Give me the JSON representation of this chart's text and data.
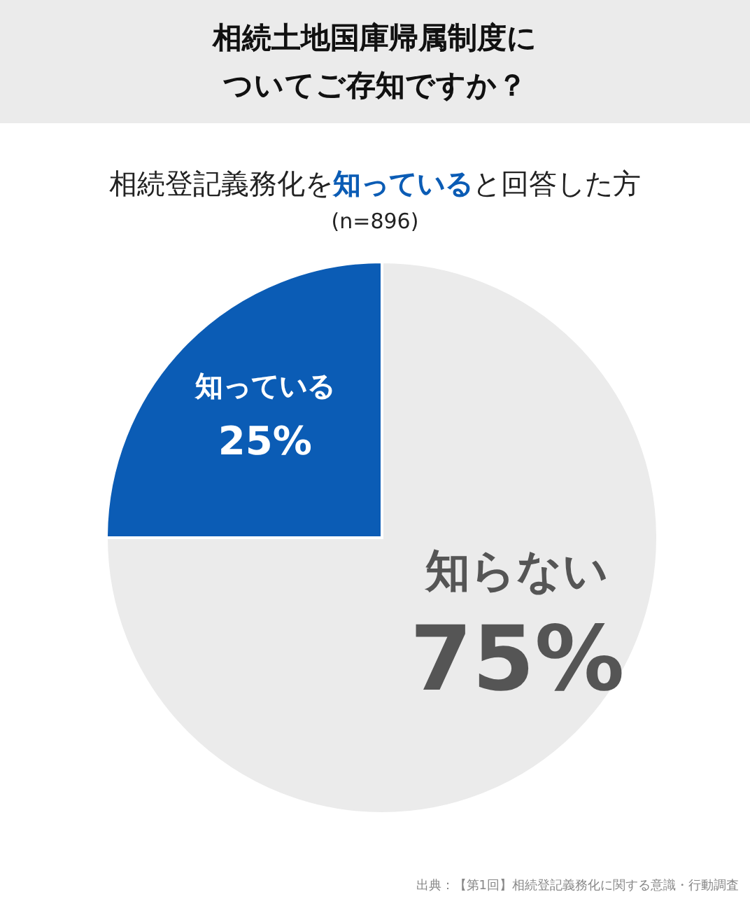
{
  "chart_data": {
    "type": "pie",
    "title": "相続土地国庫帰属制度についてご存知ですか？",
    "subtitle": "相続登記義務化を知っていると回答した方\n(n=896)",
    "categories": [
      "知っている",
      "知らない"
    ],
    "values": [
      25,
      75
    ],
    "colors": [
      "#0b5cb5",
      "#ebebeb"
    ],
    "value_labels": [
      "25%",
      "75%"
    ],
    "annotations": [
      "出典：【第1回】相続登記義務化に関する意識・行動調査"
    ]
  }
}
